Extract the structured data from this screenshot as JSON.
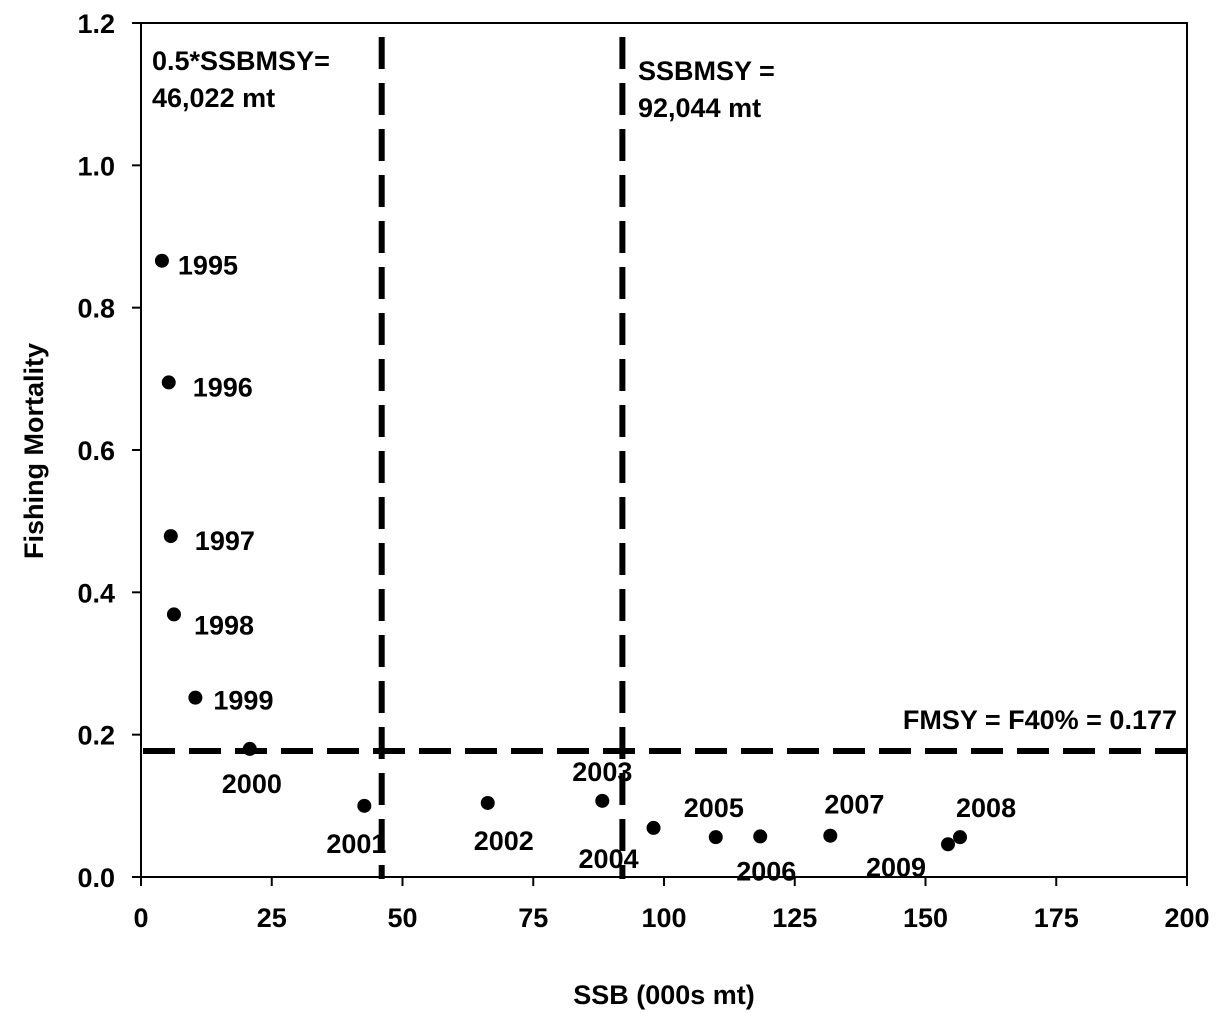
{
  "chart_data": {
    "type": "scatter",
    "xlabel": "SSB (000s mt)",
    "ylabel": "Fishing Mortality",
    "xlim": [
      0,
      200
    ],
    "ylim": [
      0,
      1.2
    ],
    "xticks": [
      "0",
      "25",
      "50",
      "75",
      "100",
      "125",
      "150",
      "175",
      "200"
    ],
    "yticks": [
      "0.0",
      "0.2",
      "0.4",
      "0.6",
      "0.8",
      "1.0",
      "1.2"
    ],
    "grid": false,
    "series": [
      {
        "points": [
          {
            "label": "1995",
            "x": 4.0,
            "y": 0.866
          },
          {
            "label": "1996",
            "x": 5.3,
            "y": 0.695
          },
          {
            "label": "1997",
            "x": 5.7,
            "y": 0.479
          },
          {
            "label": "1998",
            "x": 6.3,
            "y": 0.369
          },
          {
            "label": "1999",
            "x": 10.4,
            "y": 0.252
          },
          {
            "label": "2000",
            "x": 20.8,
            "y": 0.18
          },
          {
            "label": "2001",
            "x": 42.7,
            "y": 0.1
          },
          {
            "label": "2002",
            "x": 66.3,
            "y": 0.104
          },
          {
            "label": "2003",
            "x": 88.2,
            "y": 0.107
          },
          {
            "label": "2004",
            "x": 98.0,
            "y": 0.069
          },
          {
            "label": "2005",
            "x": 109.9,
            "y": 0.056
          },
          {
            "label": "2006",
            "x": 118.4,
            "y": 0.057
          },
          {
            "label": "2007",
            "x": 131.8,
            "y": 0.058
          },
          {
            "label": "2008",
            "x": 156.6,
            "y": 0.056
          },
          {
            "label": "2009",
            "x": 154.3,
            "y": 0.046
          }
        ]
      }
    ],
    "reference_lines": [
      {
        "orientation": "vertical",
        "value": 46.022,
        "style": "dashed",
        "label_lines": [
          "0.5*SSBMSY=",
          "46,022 mt"
        ]
      },
      {
        "orientation": "vertical",
        "value": 92.044,
        "style": "dashed",
        "label_lines": [
          "SSBMSY =",
          "92,044 mt"
        ]
      },
      {
        "orientation": "horizontal",
        "value": 0.177,
        "style": "dashed",
        "label_lines": [
          "FMSY = F40% = 0.177"
        ]
      }
    ]
  }
}
